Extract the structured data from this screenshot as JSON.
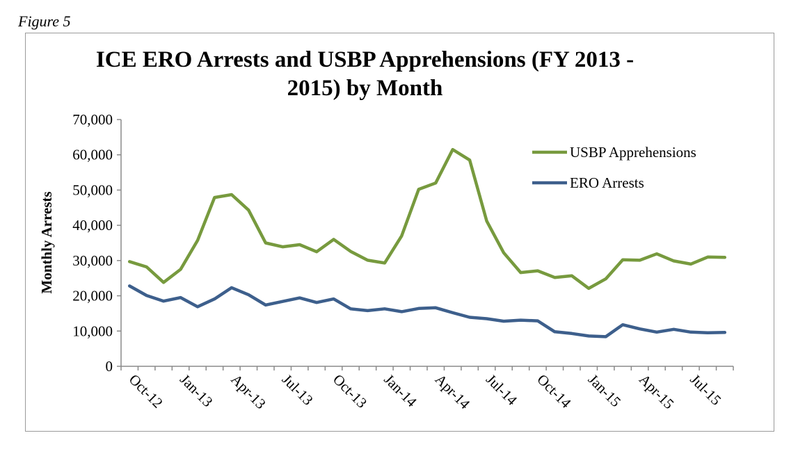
{
  "figure_label": "Figure 5",
  "chart_data": {
    "type": "line",
    "title_line1": "ICE ERO Arrests and USBP Apprehensions (FY 2013 -",
    "title_line2": "2015) by Month",
    "xlabel": "",
    "ylabel": "Monthly Arrests",
    "ylim": [
      0,
      70000
    ],
    "y_ticks": [
      0,
      10000,
      20000,
      30000,
      40000,
      50000,
      60000,
      70000
    ],
    "y_tick_labels": [
      "0",
      "10,000",
      "20,000",
      "30,000",
      "40,000",
      "50,000",
      "60,000",
      "70,000"
    ],
    "x": [
      "Oct-12",
      "Nov-12",
      "Dec-12",
      "Jan-13",
      "Feb-13",
      "Mar-13",
      "Apr-13",
      "May-13",
      "Jun-13",
      "Jul-13",
      "Aug-13",
      "Sep-13",
      "Oct-13",
      "Nov-13",
      "Dec-13",
      "Jan-14",
      "Feb-14",
      "Mar-14",
      "Apr-14",
      "May-14",
      "Jun-14",
      "Jul-14",
      "Aug-14",
      "Sep-14",
      "Oct-14",
      "Nov-14",
      "Dec-14",
      "Jan-15",
      "Feb-15",
      "Mar-15",
      "Apr-15",
      "May-15",
      "Jun-15",
      "Jul-15",
      "Aug-15",
      "Sep-15"
    ],
    "x_tick_labels": [
      "Oct-12",
      "Jan-13",
      "Apr-13",
      "Jul-13",
      "Oct-13",
      "Jan-14",
      "Apr-14",
      "Jul-14",
      "Oct-14",
      "Jan-15",
      "Apr-15",
      "Jul-15"
    ],
    "grid": false,
    "legend_position": "top-right",
    "series": [
      {
        "name": "USBP Apprehensions",
        "color": "#779a3e",
        "values": [
          29700,
          28200,
          23800,
          27500,
          35700,
          47900,
          48700,
          44300,
          35000,
          33900,
          34500,
          32500,
          36000,
          32600,
          30100,
          29300,
          37000,
          50200,
          52000,
          61500,
          58500,
          41200,
          32200,
          26600,
          27100,
          25200,
          25700,
          22100,
          24800,
          30200,
          30100,
          31900,
          29900,
          29000,
          31000,
          30900
        ]
      },
      {
        "name": "ERO Arrests",
        "color": "#3d5f8c",
        "values": [
          22800,
          20100,
          18500,
          19500,
          16900,
          19100,
          22300,
          20300,
          17400,
          18400,
          19400,
          18100,
          19100,
          16300,
          15800,
          16300,
          15500,
          16400,
          16600,
          15200,
          13900,
          13500,
          12800,
          13100,
          12900,
          9800,
          9300,
          8600,
          8400,
          11800,
          10600,
          9700,
          10500,
          9700,
          9500,
          9600
        ]
      }
    ]
  }
}
